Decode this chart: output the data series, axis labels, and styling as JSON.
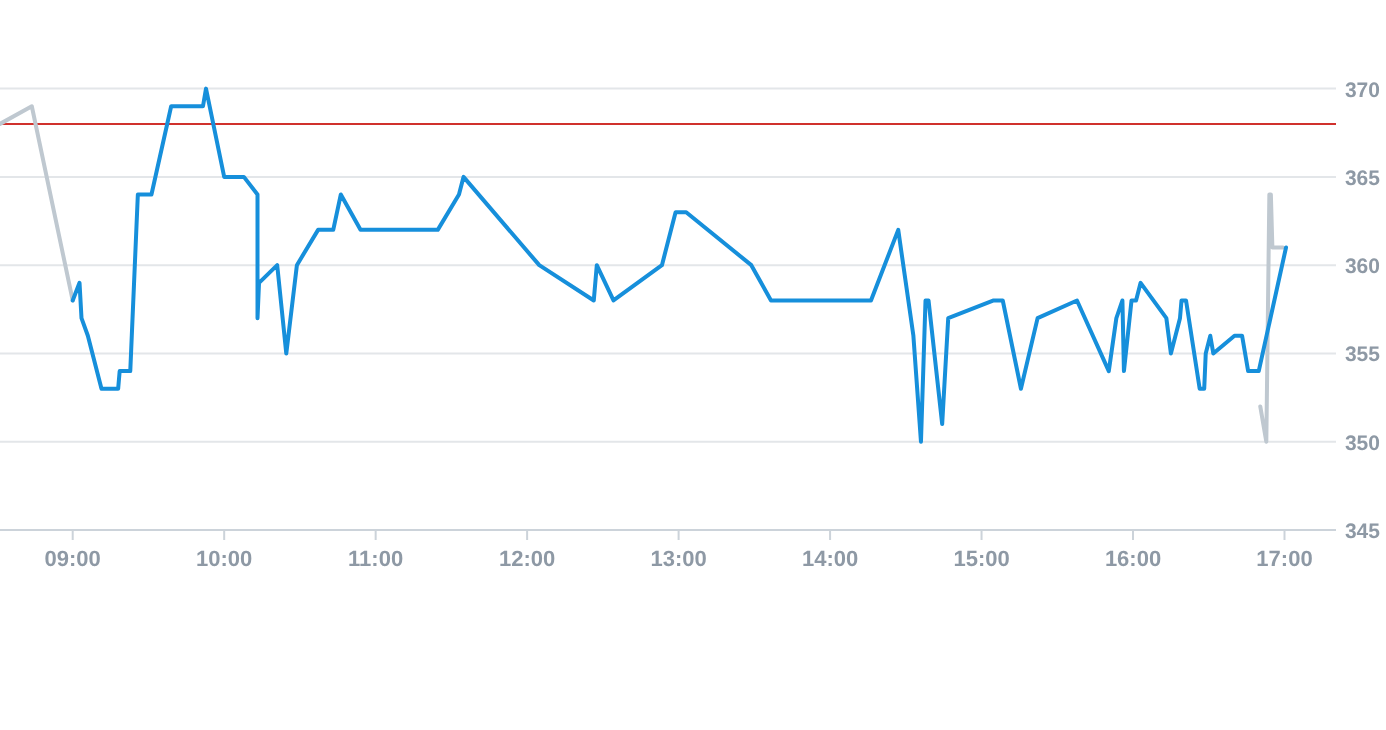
{
  "chart_data": {
    "type": "line",
    "xlim": [
      8.52,
      17.34
    ],
    "ylim": [
      345,
      370
    ],
    "xticks": [
      {
        "value": 9,
        "label": "09:00"
      },
      {
        "value": 10,
        "label": "10:00"
      },
      {
        "value": 11,
        "label": "11:00"
      },
      {
        "value": 12,
        "label": "12:00"
      },
      {
        "value": 13,
        "label": "13:00"
      },
      {
        "value": 14,
        "label": "14:00"
      },
      {
        "value": 15,
        "label": "15:00"
      },
      {
        "value": 16,
        "label": "16:00"
      },
      {
        "value": 17,
        "label": "17:00"
      }
    ],
    "yticks": [
      345,
      350,
      355,
      360,
      365,
      370
    ],
    "grid": "y",
    "marker": "none",
    "line_style": "solid",
    "ref_lines": [
      {
        "axis": "y",
        "value": 368,
        "color": "#d0312d"
      }
    ],
    "series": [
      {
        "color": "#bfc8d0",
        "x": [
          8.52,
          8.73,
          9.0
        ],
        "values": [
          368,
          369,
          358
        ]
      },
      {
        "color": "#bfc8d0",
        "x": [
          16.84,
          16.88,
          16.9,
          16.91,
          16.92,
          16.99
        ],
        "values": [
          352,
          350,
          364,
          364,
          361,
          361
        ]
      },
      {
        "color": "#168fdb",
        "x": [
          9.0,
          9.045,
          9.058,
          9.1,
          9.19,
          9.3,
          9.31,
          9.38,
          9.43,
          9.52,
          9.65,
          9.86,
          9.88,
          10.0,
          10.13,
          10.22,
          10.22,
          10.23,
          10.35,
          10.41,
          10.48,
          10.62,
          10.72,
          10.77,
          10.9,
          11.41,
          11.55,
          11.58,
          12.08,
          12.44,
          12.46,
          12.57,
          12.89,
          12.98,
          13.05,
          13.48,
          13.61,
          14.27,
          14.45,
          14.55,
          14.6,
          14.63,
          14.65,
          14.74,
          14.78,
          15.08,
          15.14,
          15.26,
          15.37,
          15.63,
          15.84,
          15.89,
          15.93,
          15.94,
          15.99,
          16.02,
          16.05,
          16.22,
          16.25,
          16.31,
          16.32,
          16.35,
          16.44,
          16.47,
          16.48,
          16.51,
          16.53,
          16.67,
          16.72,
          16.76,
          16.83,
          17.01
        ],
        "values": [
          358,
          359,
          357,
          356,
          353,
          353,
          354,
          354,
          364,
          364,
          369,
          369,
          370,
          365,
          365,
          364,
          357,
          359,
          360,
          355,
          360,
          362,
          362,
          364,
          362,
          362,
          364,
          365,
          360,
          358,
          360,
          358,
          360,
          363,
          363,
          360,
          358,
          358,
          362,
          356,
          350,
          358,
          358,
          351,
          357,
          358,
          358,
          353,
          357,
          358,
          354,
          357,
          358,
          354,
          358,
          358,
          359,
          357,
          355,
          357,
          358,
          358,
          353,
          353,
          355,
          356,
          355,
          356,
          356,
          354,
          354,
          361
        ]
      }
    ]
  }
}
